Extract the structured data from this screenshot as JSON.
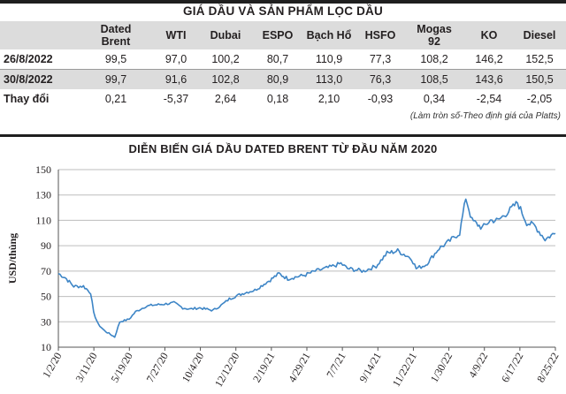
{
  "table": {
    "title": "GIÁ DẦU VÀ SẢN PHẨM LỌC DẦU",
    "columns": [
      "Dated\nBrent",
      "WTI",
      "Dubai",
      "ESPO",
      "Bạch Hổ",
      "HSFO",
      "Mogas\n92",
      "KO",
      "Diesel"
    ],
    "rows": [
      {
        "label": "26/8/2022",
        "values": [
          "99,5",
          "97,0",
          "100,2",
          "80,7",
          "110,9",
          "77,3",
          "108,2",
          "146,2",
          "152,5"
        ]
      },
      {
        "label": "30/8/2022",
        "values": [
          "99,7",
          "91,6",
          "102,8",
          "80,9",
          "113,0",
          "76,3",
          "108,5",
          "143,6",
          "150,5"
        ]
      },
      {
        "label": "Thay đổi",
        "values": [
          "0,21",
          "-5,37",
          "2,64",
          "0,18",
          "2,10",
          "-0,93",
          "0,34",
          "-2,54",
          "-2,05"
        ]
      }
    ],
    "note": "(Làm tròn số-Theo định giá của Platts)"
  },
  "colors": {
    "line": "#3d85c6",
    "band": "#dcdcdc",
    "grid": "#bdbdbd",
    "text": "#231f20"
  },
  "chart_data": {
    "type": "line",
    "title": "DIỄN BIẾN GIÁ DẦU DATED BRENT TỪ ĐẦU NĂM 2020",
    "xlabel": "",
    "ylabel": "USD/thùng",
    "ylim": [
      10,
      150
    ],
    "yticks": [
      10,
      30,
      50,
      70,
      90,
      110,
      130,
      150
    ],
    "grid": "horizontal",
    "xlim": [
      "2020-01-02",
      "2022-08-30"
    ],
    "xtick_labels": [
      "1/2/20",
      "3/11/20",
      "5/19/20",
      "7/27/20",
      "10/4/20",
      "12/12/20",
      "2/19/21",
      "4/29/21",
      "7/7/21",
      "9/14/21",
      "11/22/21",
      "1/30/22",
      "4/9/22",
      "6/17/22",
      "8/25/22"
    ],
    "series": [
      {
        "name": "Dated Brent",
        "x": [
          "2020-01-02",
          "2020-01-15",
          "2020-02-01",
          "2020-02-20",
          "2020-03-05",
          "2020-03-11",
          "2020-03-20",
          "2020-04-01",
          "2020-04-21",
          "2020-05-01",
          "2020-05-19",
          "2020-06-01",
          "2020-06-20",
          "2020-07-01",
          "2020-07-27",
          "2020-08-15",
          "2020-09-01",
          "2020-09-15",
          "2020-10-04",
          "2020-10-30",
          "2020-11-15",
          "2020-12-01",
          "2020-12-12",
          "2021-01-01",
          "2021-01-20",
          "2021-02-19",
          "2021-03-08",
          "2021-03-25",
          "2021-04-29",
          "2021-05-18",
          "2021-06-15",
          "2021-07-07",
          "2021-07-20",
          "2021-08-20",
          "2021-09-14",
          "2021-10-05",
          "2021-10-26",
          "2021-11-22",
          "2021-12-01",
          "2021-12-20",
          "2022-01-15",
          "2022-01-30",
          "2022-02-24",
          "2022-03-08",
          "2022-03-20",
          "2022-04-09",
          "2022-04-25",
          "2022-05-10",
          "2022-05-25",
          "2022-06-17",
          "2022-07-05",
          "2022-07-20",
          "2022-08-10",
          "2022-08-25",
          "2022-08-30"
        ],
        "values": [
          68,
          65,
          58,
          58,
          53,
          37,
          28,
          23,
          18,
          30,
          32,
          38,
          42,
          43,
          44,
          45,
          41,
          40,
          41,
          39,
          43,
          48,
          50,
          53,
          55,
          63,
          68,
          64,
          67,
          70,
          73,
          76,
          72,
          70,
          74,
          84,
          86,
          80,
          72,
          75,
          88,
          92,
          100,
          128,
          110,
          104,
          110,
          110,
          115,
          124,
          108,
          106,
          95,
          99,
          99.7
        ]
      }
    ]
  }
}
